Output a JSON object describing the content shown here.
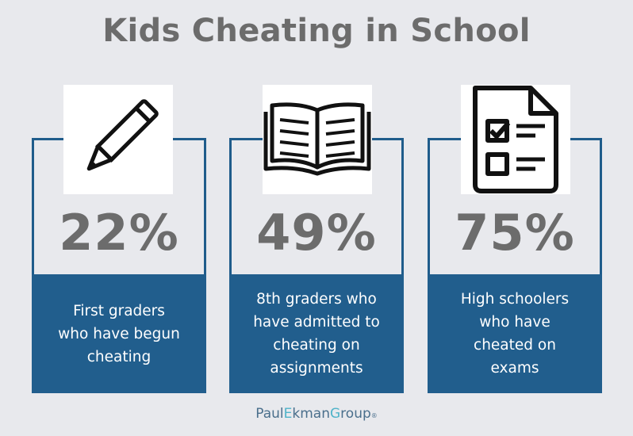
{
  "title": "Kids Cheating in School",
  "cards": [
    {
      "percent": "22%",
      "lines": [
        "First graders",
        "who have begun",
        "cheating"
      ],
      "icon": "pencil-icon"
    },
    {
      "percent": "49%",
      "lines": [
        "8th graders who",
        "have admitted to",
        "cheating on",
        "assignments"
      ],
      "icon": "open-book-icon"
    },
    {
      "percent": "75%",
      "lines": [
        "High schoolers",
        "who have",
        "cheated on",
        "exams"
      ],
      "icon": "checklist-document-icon"
    }
  ],
  "brand": {
    "part1": "Paul",
    "part2": "E",
    "part3": "kman",
    "part4": "G",
    "part5": "roup",
    "mark": "®"
  },
  "colors": {
    "background": "#e8e9ed",
    "accent": "#215e8d",
    "text": "#6c6c6c"
  }
}
